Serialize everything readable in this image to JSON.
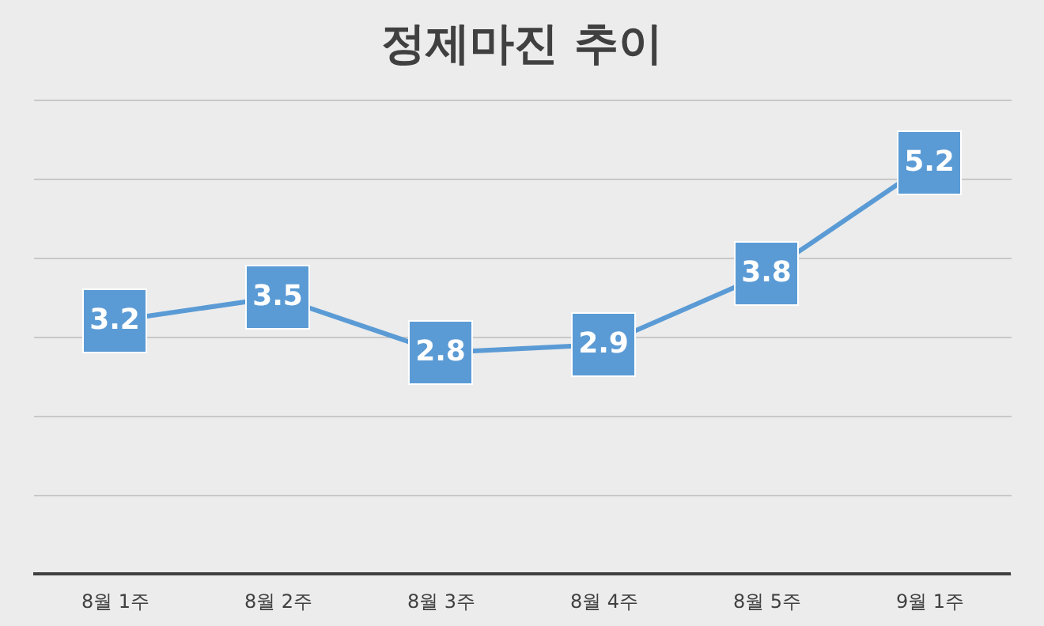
{
  "chart_data": {
    "type": "line",
    "title": "정제마진 추이",
    "categories": [
      "8월 1주",
      "8월 2주",
      "8월 3주",
      "8월 4주",
      "8월 5주",
      "9월 1주"
    ],
    "series": [
      {
        "color": "#5b9bd5",
        "values": [
          3.2,
          3.5,
          2.8,
          2.9,
          3.8,
          5.2
        ]
      }
    ],
    "ylim": [
      0,
      6
    ],
    "yticks": [
      {
        "value": 0,
        "label": null
      },
      {
        "value": 1,
        "label": null
      },
      {
        "value": 2,
        "label": null
      },
      {
        "value": 3,
        "label": null
      },
      {
        "value": 4,
        "label": null
      },
      {
        "value": 5,
        "label": null
      },
      {
        "value": 6,
        "label": null
      }
    ],
    "tick_labels": "x",
    "grid": "y",
    "marker": "square",
    "line_style": "solid",
    "data_labels": true
  }
}
